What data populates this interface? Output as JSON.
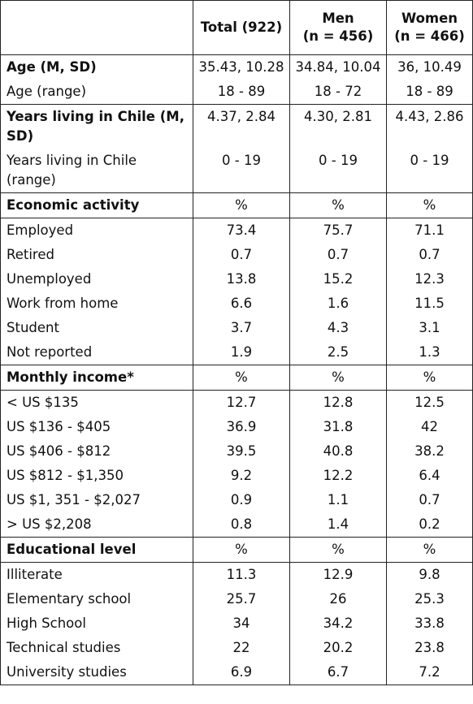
{
  "table": {
    "header": [
      "",
      "Total (922)",
      "Men\n(n = 456)",
      "Women\n(n = 466)"
    ],
    "groups": [
      {
        "rows": [
          {
            "bold": true,
            "cells": [
              "Age (M, SD)",
              "35.43, 10.28",
              "34.84, 10.04",
              "36, 10.49"
            ]
          },
          {
            "cells": [
              "Age (range)",
              "18 - 89",
              "18 - 72",
              "18 - 89"
            ]
          }
        ]
      },
      {
        "rows": [
          {
            "bold": true,
            "cells": [
              "Years living in Chile (M, SD)",
              "4.37, 2.84",
              "4.30, 2.81",
              "4.43, 2.86"
            ]
          },
          {
            "cells": [
              "Years living in Chile (range)",
              "0 - 19",
              "0 - 19",
              "0 - 19"
            ]
          }
        ]
      },
      {
        "rows": [
          {
            "bold": true,
            "cells": [
              "Economic activity",
              "%",
              "%",
              "%"
            ]
          }
        ]
      },
      {
        "rows": [
          {
            "cells": [
              "Employed",
              "73.4",
              "75.7",
              "71.1"
            ]
          },
          {
            "cells": [
              "Retired",
              "0.7",
              "0.7",
              "0.7"
            ]
          },
          {
            "cells": [
              "Unemployed",
              "13.8",
              "15.2",
              "12.3"
            ]
          },
          {
            "cells": [
              "Work from home",
              "6.6",
              "1.6",
              "11.5"
            ]
          },
          {
            "cells": [
              "Student",
              "3.7",
              "4.3",
              "3.1"
            ]
          },
          {
            "cells": [
              "Not reported",
              "1.9",
              "2.5",
              "1.3"
            ]
          }
        ]
      },
      {
        "rows": [
          {
            "bold": true,
            "cells": [
              "Monthly income*",
              "%",
              "%",
              "%"
            ]
          }
        ]
      },
      {
        "rows": [
          {
            "cells": [
              "< US $135",
              "12.7",
              "12.8",
              "12.5"
            ]
          },
          {
            "cells": [
              "US $136 - $405",
              "36.9",
              "31.8",
              "42"
            ]
          },
          {
            "cells": [
              "US $406 - $812",
              "39.5",
              "40.8",
              "38.2"
            ]
          },
          {
            "cells": [
              "US $812 - $1,350",
              "9.2",
              "12.2",
              "6.4"
            ]
          },
          {
            "cells": [
              "US $1, 351 - $2,027",
              "0.9",
              "1.1",
              "0.7"
            ]
          },
          {
            "cells": [
              "> US $2,208",
              "0.8",
              "1.4",
              "0.2"
            ]
          }
        ]
      },
      {
        "rows": [
          {
            "bold": true,
            "cells": [
              "Educational level",
              "%",
              "%",
              "%"
            ]
          }
        ]
      },
      {
        "rows": [
          {
            "cells": [
              "Illiterate",
              "11.3",
              "12.9",
              "9.8"
            ]
          },
          {
            "cells": [
              "Elementary school",
              "25.7",
              "26",
              "25.3"
            ]
          },
          {
            "cells": [
              "High School",
              "34",
              "34.2",
              "33.8"
            ]
          },
          {
            "cells": [
              "Technical studies",
              "22",
              "20.2",
              "23.8"
            ]
          },
          {
            "cells": [
              "University studies",
              "6.9",
              "6.7",
              "7.2"
            ]
          }
        ]
      }
    ]
  }
}
